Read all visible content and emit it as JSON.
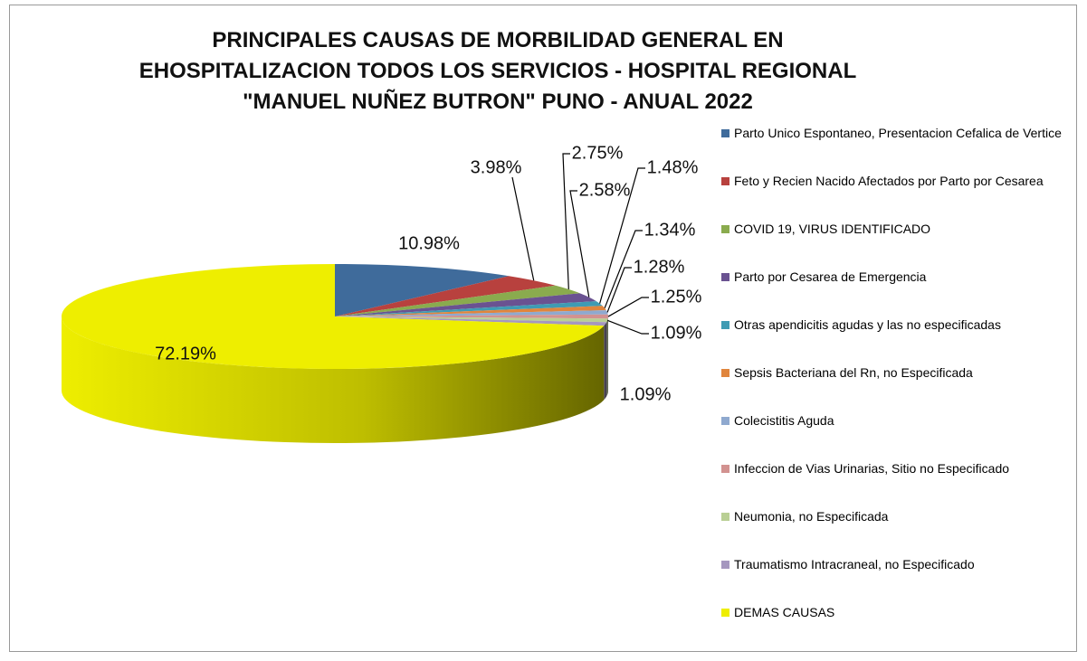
{
  "chart_data": {
    "type": "pie3d",
    "title": "PRINCIPALES CAUSAS DE MORBILIDAD GENERAL EN\nEHOSPITALIZACION TODOS LOS SERVICIOS - HOSPITAL REGIONAL\n\"MANUEL NUÑEZ BUTRON\" PUNO - ANUAL 2022",
    "categories": [
      "Parto Unico Espontaneo, Presentacion Cefalica de Vertice",
      "Feto y Recien Nacido Afectados por Parto por Cesarea",
      "COVID 19, VIRUS IDENTIFICADO",
      "Parto por Cesarea de Emergencia",
      "Otras apendicitis agudas y las no especificadas",
      "Sepsis Bacteriana del Rn, no Especificada",
      "Colecistitis Aguda",
      "Infeccion de Vias Urinarias, Sitio no Especificado",
      "Neumonia, no Especificada",
      "Traumatismo Intracraneal, no Especificado",
      "DEMAS CAUSAS"
    ],
    "values": [
      10.98,
      3.98,
      2.75,
      2.58,
      1.48,
      1.34,
      1.28,
      1.25,
      1.09,
      1.09,
      72.19
    ],
    "value_labels": [
      "10.98%",
      "3.98%",
      "2.75%",
      "2.58%",
      "1.48%",
      "1.34%",
      "1.28%",
      "1.25%",
      "1.09%",
      "1.09%",
      "72.19%"
    ],
    "colors": [
      "#3f6b9b",
      "#b8413e",
      "#8aab4e",
      "#6a5291",
      "#3f9bb3",
      "#e0853d",
      "#8fa9cf",
      "#d29290",
      "#b9cf94",
      "#a597bf",
      "#eeee00"
    ],
    "legend": "right"
  }
}
